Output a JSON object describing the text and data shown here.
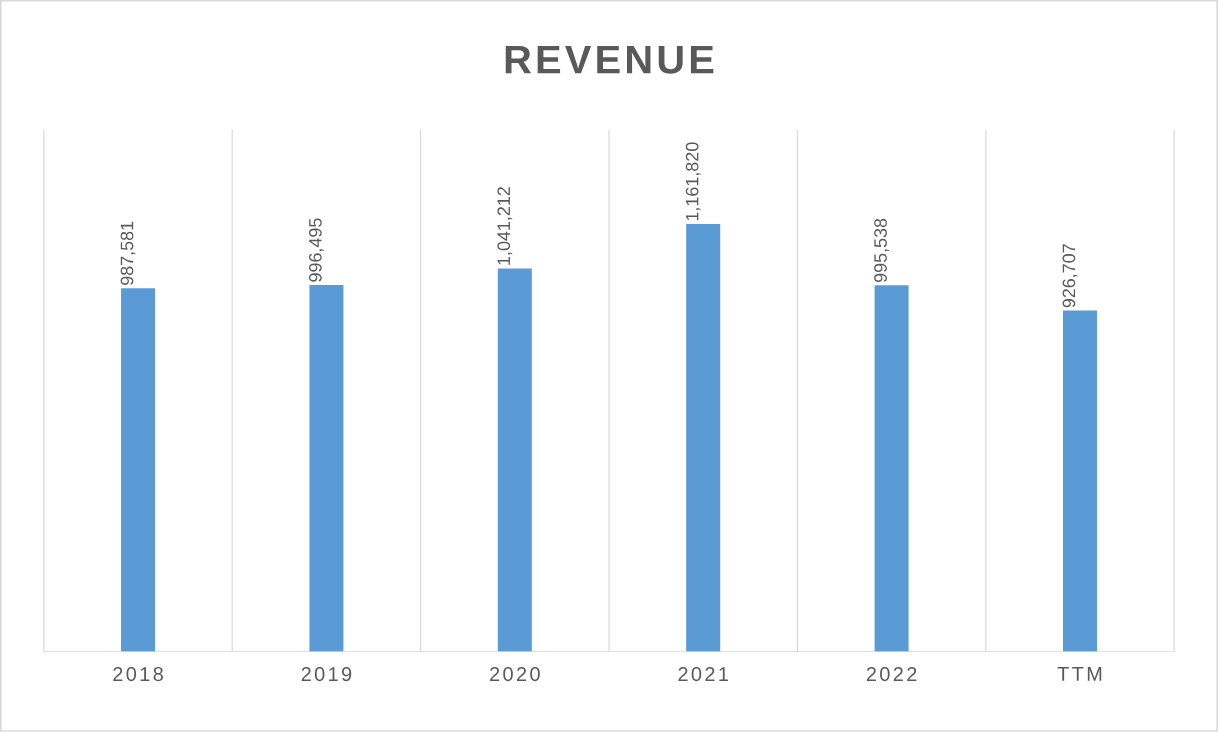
{
  "chart_data": {
    "type": "bar",
    "title": "REVENUE",
    "categories": [
      "2018",
      "2019",
      "2020",
      "2021",
      "2022",
      "TTM"
    ],
    "values": [
      987581,
      996495,
      1041212,
      1161820,
      995538,
      926707
    ],
    "value_labels": [
      "987,581",
      "996,495",
      "1,041,212",
      "1,161,820",
      "995,538",
      "926,707"
    ],
    "color": "#5b9bd5",
    "grid": "x",
    "tick_labels": "x"
  }
}
